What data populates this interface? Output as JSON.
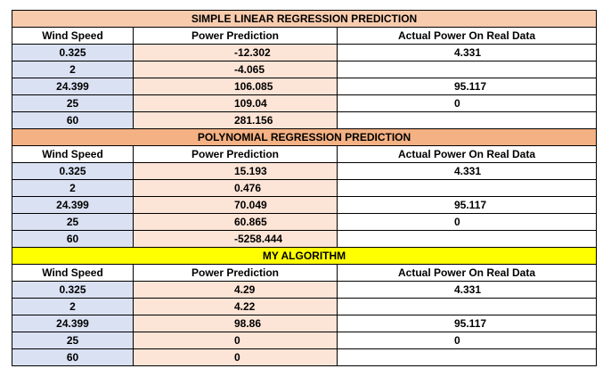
{
  "columns": {
    "wind_speed": "Wind Speed",
    "power_prediction": "Power Prediction",
    "actual_power": "Actual Power On Real Data"
  },
  "sections": [
    {
      "title": "SIMPLE LINEAR REGRESSION PREDICTION",
      "title_color": "#f8cbad",
      "rows": [
        {
          "wind": "0.325",
          "prediction": "-12.302",
          "actual": "4.331"
        },
        {
          "wind": "2",
          "prediction": "-4.065",
          "actual": ""
        },
        {
          "wind": "24.399",
          "prediction": "106.085",
          "actual": "95.117"
        },
        {
          "wind": "25",
          "prediction": "109.04",
          "actual": "0"
        },
        {
          "wind": "60",
          "prediction": "281.156",
          "actual": ""
        }
      ]
    },
    {
      "title": "POLYNOMIAL REGRESSION PREDICTION",
      "title_color": "#f4b183",
      "rows": [
        {
          "wind": "0.325",
          "prediction": "15.193",
          "actual": "4.331"
        },
        {
          "wind": "2",
          "prediction": "0.476",
          "actual": ""
        },
        {
          "wind": "24.399",
          "prediction": "70.049",
          "actual": "95.117"
        },
        {
          "wind": "25",
          "prediction": "60.865",
          "actual": "0"
        },
        {
          "wind": "60",
          "prediction": "-5258.444",
          "actual": ""
        }
      ]
    },
    {
      "title": "MY ALGORITHM",
      "title_color": "#ffff00",
      "rows": [
        {
          "wind": "0.325",
          "prediction": "4.29",
          "actual": "4.331"
        },
        {
          "wind": "2",
          "prediction": "4.22",
          "actual": ""
        },
        {
          "wind": "24.399",
          "prediction": "98.86",
          "actual": "95.117"
        },
        {
          "wind": "25",
          "prediction": "0",
          "actual": "0"
        },
        {
          "wind": "60",
          "prediction": "0",
          "actual": ""
        }
      ]
    }
  ],
  "colors": {
    "wind_cell": "#d9e1f2",
    "prediction_cell": "#fce4d6",
    "actual_cell": "#ffffff",
    "grid": "#000000"
  }
}
